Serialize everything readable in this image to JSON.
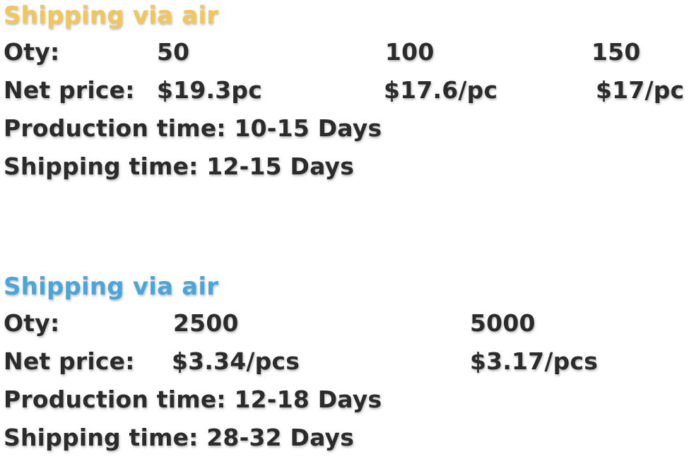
{
  "section1": {
    "title": "Shipping via air",
    "title_color": "#f1c75a",
    "qty_label": "Oty:",
    "quantities": [
      "50",
      "100",
      "150"
    ],
    "price_label": "Net price:",
    "prices": [
      "$19.3pc",
      "$17.6/pc",
      "$17/pc"
    ],
    "production_time": "Production time: 10-15 Days",
    "shipping_time": "Shipping time: 12-15 Days"
  },
  "section2": {
    "title": "Shipping via air",
    "title_color": "#4aa6da",
    "qty_label": "Oty:",
    "quantities": [
      "2500",
      "5000"
    ],
    "price_label": "Net price:",
    "prices": [
      "$3.34/pcs",
      "$3.17/pcs"
    ],
    "production_time": "Production time: 12-18 Days",
    "shipping_time": "Shipping time: 28-32 Days"
  }
}
